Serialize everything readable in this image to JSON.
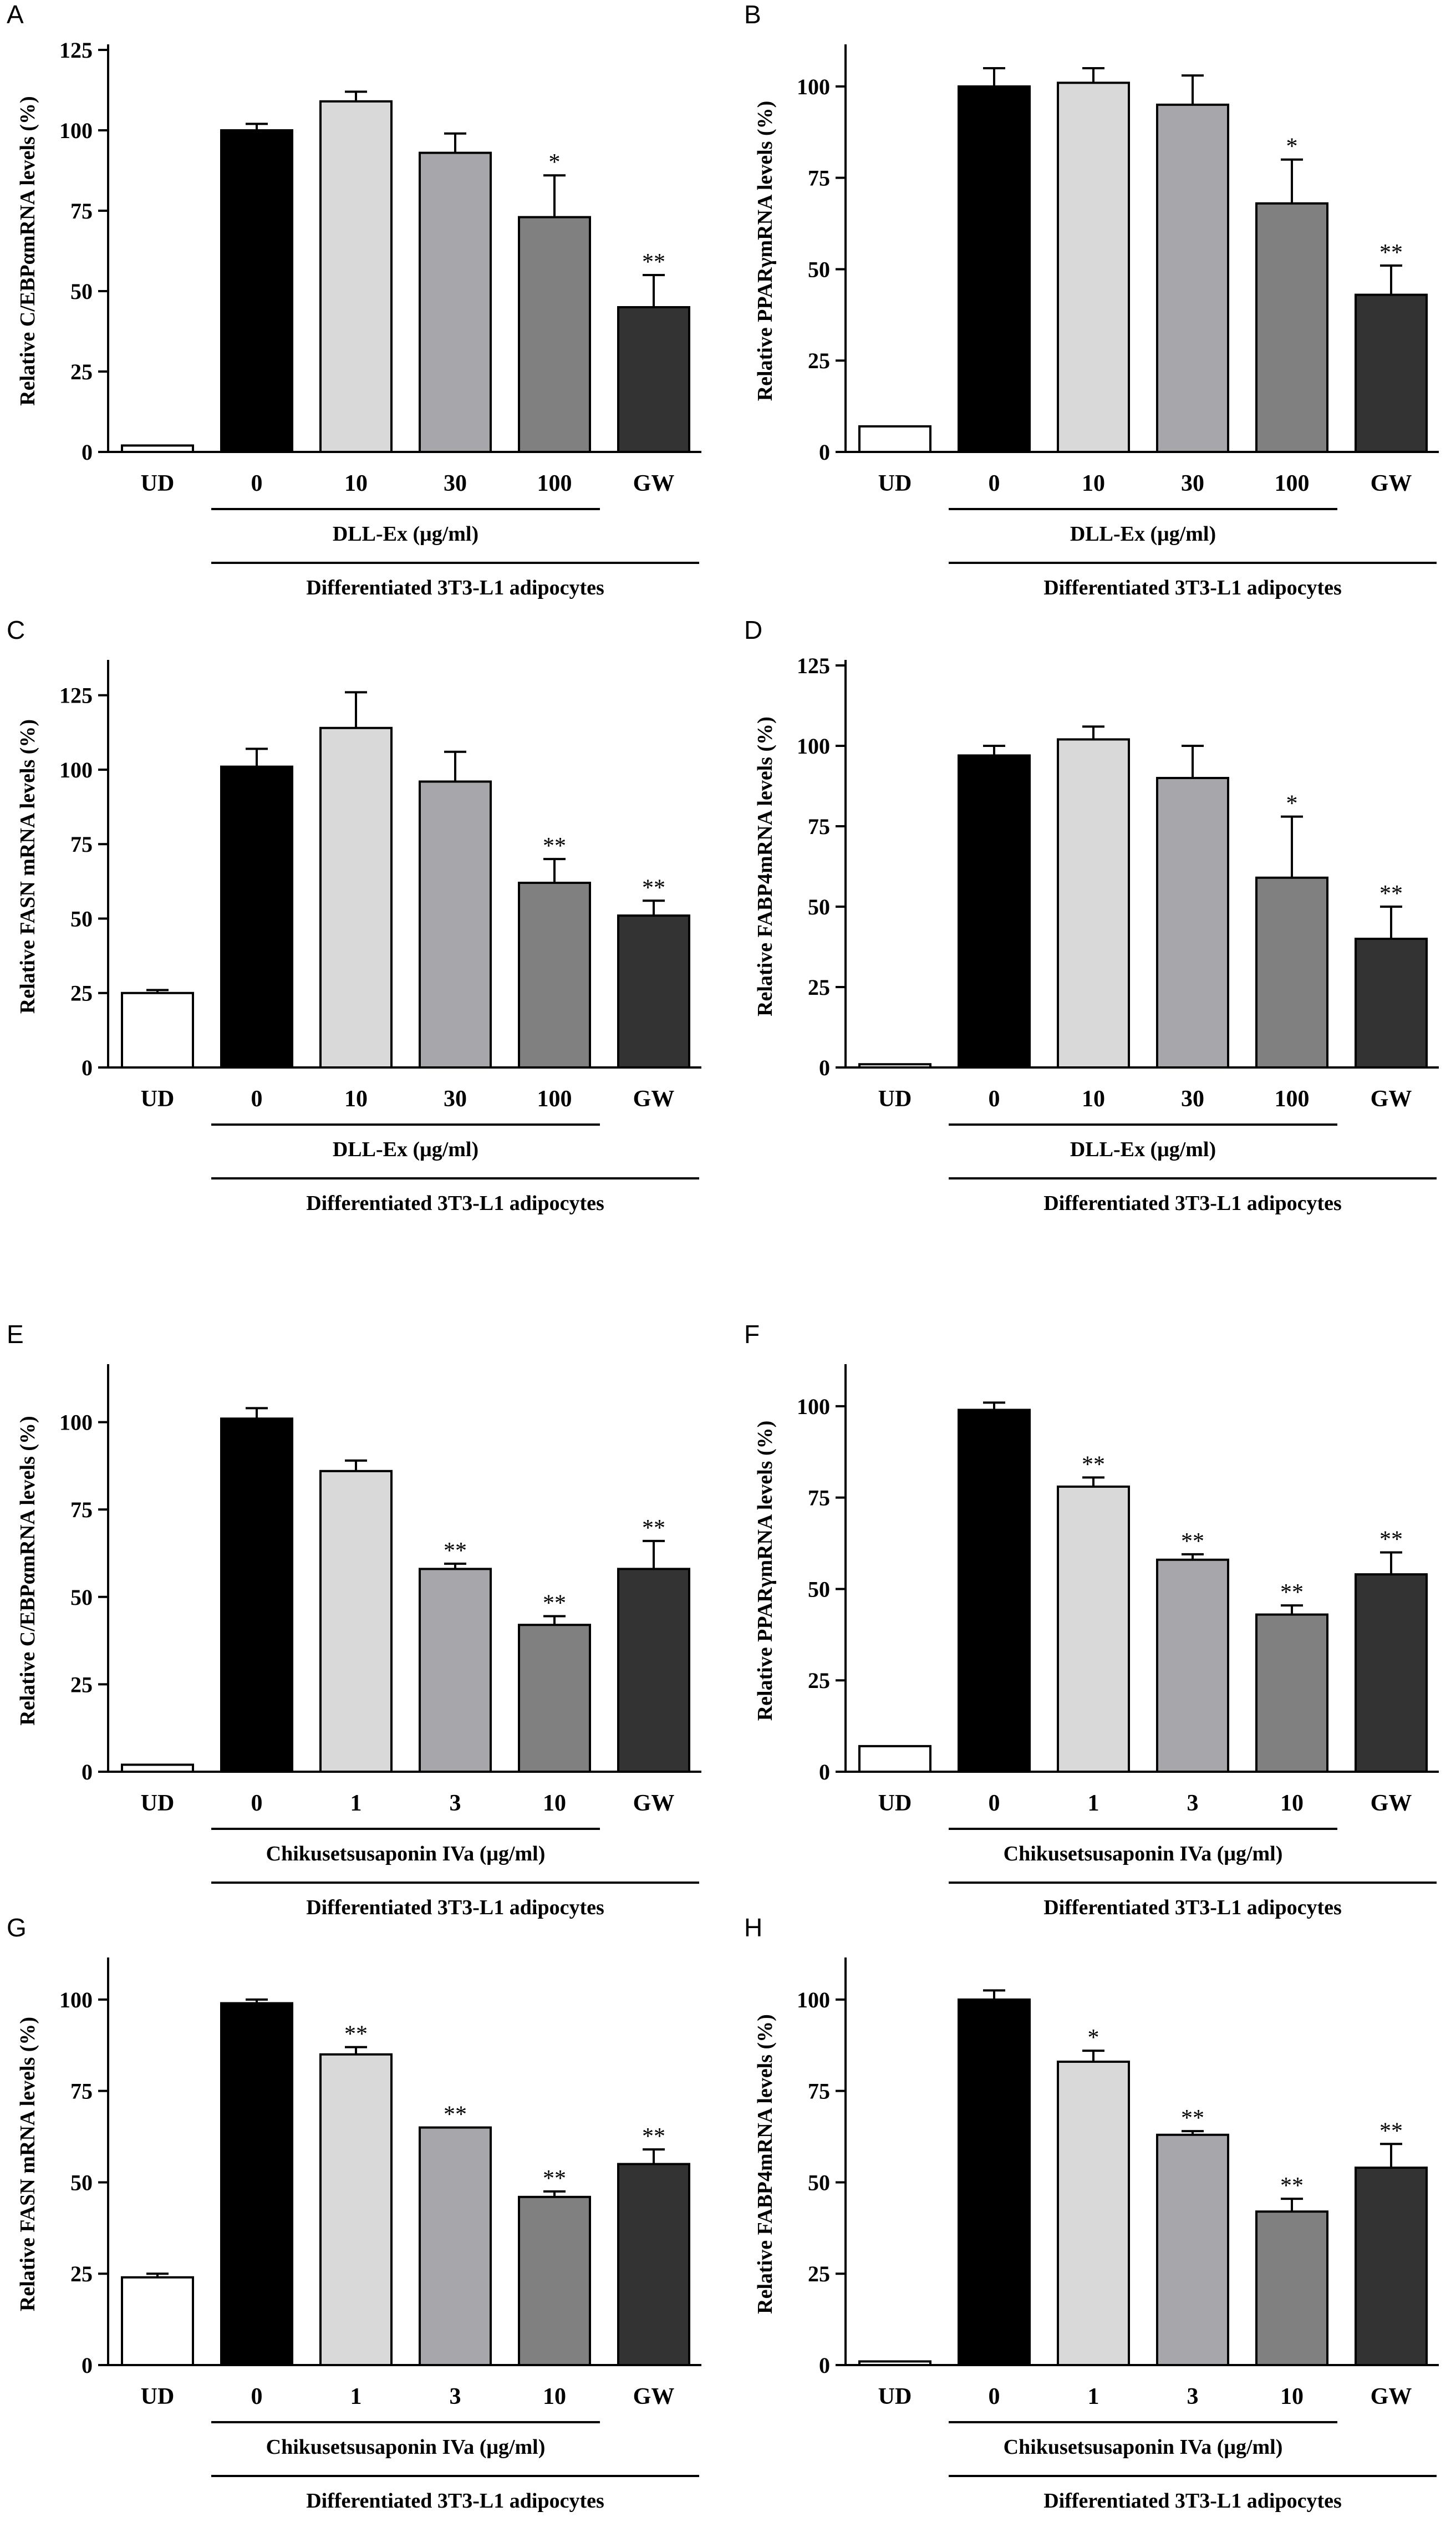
{
  "figure": {
    "panels": [
      {
        "letter": "A",
        "ylabel": "Relative C/EBPαmRNA levels (%)",
        "treatment_label": "DLL-Ex (μg/ml)",
        "group_label": "Differentiated 3T3-L1 adipocytes"
      },
      {
        "letter": "B",
        "ylabel": "Relative PPARγmRNA levels (%)",
        "treatment_label": "DLL-Ex (μg/ml)",
        "group_label": "Differentiated 3T3-L1 adipocytes"
      },
      {
        "letter": "C",
        "ylabel": "Relative FASN mRNA levels (%)",
        "treatment_label": "DLL-Ex (μg/ml)",
        "group_label": "Differentiated 3T3-L1 adipocytes"
      },
      {
        "letter": "D",
        "ylabel": "Relative FABP4mRNA levels (%)",
        "treatment_label": "DLL-Ex (μg/ml)",
        "group_label": "Differentiated 3T3-L1 adipocytes"
      },
      {
        "letter": "E",
        "ylabel": "Relative C/EBPαmRNA levels (%)",
        "treatment_label": "Chikusetsusaponin IVa (μg/ml)",
        "group_label": "Differentiated 3T3-L1 adipocytes"
      },
      {
        "letter": "F",
        "ylabel": "Relative PPARγmRNA levels (%)",
        "treatment_label": "Chikusetsusaponin IVa (μg/ml)",
        "group_label": "Differentiated 3T3-L1 adipocytes"
      },
      {
        "letter": "G",
        "ylabel": "Relative FASN mRNA levels (%)",
        "treatment_label": "Chikusetsusaponin IVa (μg/ml)",
        "group_label": "Differentiated 3T3-L1 adipocytes"
      },
      {
        "letter": "H",
        "ylabel": "Relative FABP4mRNA levels (%)",
        "treatment_label": "Chikusetsusaponin IVa (μg/ml)",
        "group_label": "Differentiated 3T3-L1 adipocytes"
      }
    ],
    "colors": [
      "#ffffff",
      "#000000",
      "#d9d9d9",
      "#a6a6ab",
      "#808080",
      "#333333"
    ]
  },
  "chart_data": [
    {
      "type": "bar",
      "categories": [
        "UD",
        "0",
        "10",
        "30",
        "100",
        "GW"
      ],
      "values": [
        2,
        100,
        109,
        93,
        73,
        45
      ],
      "errors": [
        0.5,
        2,
        3,
        6,
        13,
        10
      ],
      "significance": [
        "",
        "",
        "",
        "",
        "*",
        "**"
      ],
      "ylim": [
        0,
        125
      ],
      "yticks": [
        0,
        25,
        50,
        75,
        100,
        125
      ]
    },
    {
      "type": "bar",
      "categories": [
        "UD",
        "0",
        "10",
        "30",
        "100",
        "GW"
      ],
      "values": [
        7,
        100,
        101,
        95,
        68,
        43
      ],
      "errors": [
        0.5,
        5,
        4,
        8,
        12,
        8
      ],
      "significance": [
        "",
        "",
        "",
        "",
        "*",
        "**"
      ],
      "ylim": [
        0,
        110
      ],
      "yticks": [
        0,
        25,
        50,
        75,
        100
      ]
    },
    {
      "type": "bar",
      "categories": [
        "UD",
        "0",
        "10",
        "30",
        "100",
        "GW"
      ],
      "values": [
        25,
        101,
        114,
        96,
        62,
        51
      ],
      "errors": [
        1,
        6,
        12,
        10,
        8,
        5
      ],
      "significance": [
        "",
        "",
        "",
        "",
        "**",
        "**"
      ],
      "ylim": [
        0,
        135
      ],
      "yticks": [
        0,
        25,
        50,
        75,
        100,
        125
      ]
    },
    {
      "type": "bar",
      "categories": [
        "UD",
        "0",
        "10",
        "30",
        "100",
        "GW"
      ],
      "values": [
        1,
        97,
        102,
        90,
        59,
        40
      ],
      "errors": [
        0.5,
        3,
        4,
        10,
        19,
        10
      ],
      "significance": [
        "",
        "",
        "",
        "",
        "*",
        "**"
      ],
      "ylim": [
        0,
        125
      ],
      "yticks": [
        0,
        25,
        50,
        75,
        100,
        125
      ],
      "ytick_labels": [
        "0",
        "25",
        "50",
        "75",
        "100",
        "125"
      ]
    },
    {
      "type": "bar",
      "categories": [
        "UD",
        "0",
        "1",
        "3",
        "10",
        "GW"
      ],
      "values": [
        2,
        101,
        86,
        58,
        42,
        58
      ],
      "errors": [
        0.5,
        3,
        3,
        1.5,
        2.5,
        8
      ],
      "significance": [
        "",
        "",
        "",
        "**",
        "**",
        "**"
      ],
      "ylim": [
        0,
        115
      ],
      "yticks": [
        0,
        25,
        50,
        75,
        100
      ]
    },
    {
      "type": "bar",
      "categories": [
        "UD",
        "0",
        "1",
        "3",
        "10",
        "GW"
      ],
      "values": [
        7,
        99,
        78,
        58,
        43,
        54
      ],
      "errors": [
        0.5,
        2,
        2.5,
        1.5,
        2.5,
        6
      ],
      "significance": [
        "",
        "",
        "**",
        "**",
        "**",
        "**"
      ],
      "ylim": [
        0,
        110
      ],
      "yticks": [
        0,
        25,
        50,
        75,
        100
      ]
    },
    {
      "type": "bar",
      "categories": [
        "UD",
        "0",
        "1",
        "3",
        "10",
        "GW"
      ],
      "values": [
        24,
        99,
        85,
        65,
        46,
        55
      ],
      "errors": [
        1,
        1,
        2,
        0.5,
        1.5,
        4
      ],
      "significance": [
        "",
        "",
        "**",
        "**",
        "**",
        "**"
      ],
      "ylim": [
        0,
        110
      ],
      "yticks": [
        0,
        25,
        50,
        75,
        100
      ]
    },
    {
      "type": "bar",
      "categories": [
        "UD",
        "0",
        "1",
        "3",
        "10",
        "GW"
      ],
      "values": [
        1,
        100,
        83,
        63,
        42,
        54
      ],
      "errors": [
        0.5,
        2.5,
        3,
        1,
        3.5,
        6.5
      ],
      "significance": [
        "",
        "",
        "*",
        "**",
        "**",
        "**"
      ],
      "ylim": [
        0,
        110
      ],
      "yticks": [
        0,
        25,
        50,
        75,
        100
      ]
    }
  ]
}
